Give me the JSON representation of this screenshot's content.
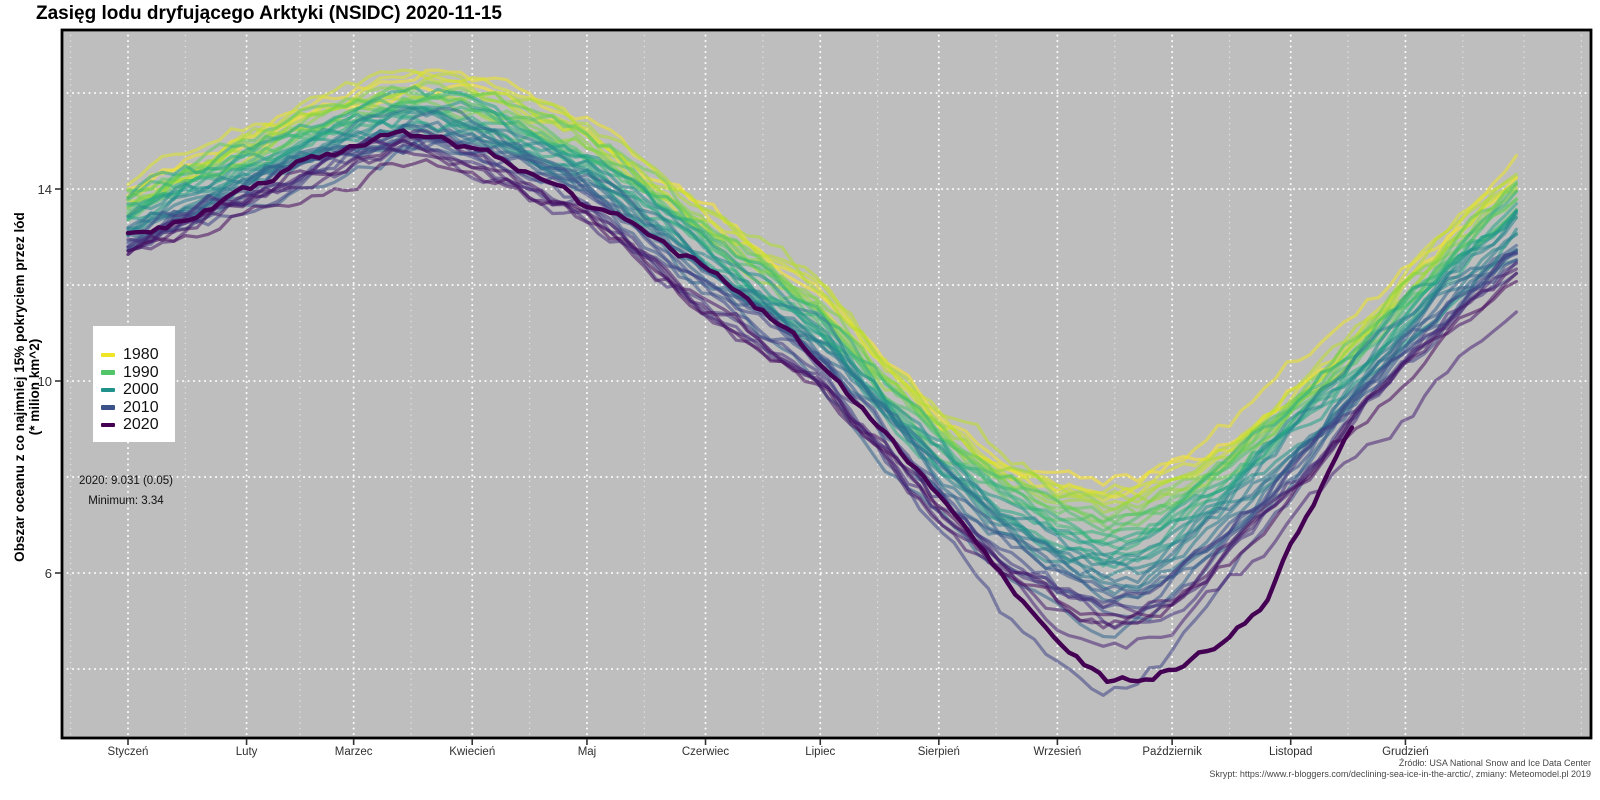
{
  "title": "Zasięg lodu dryfującego Arktyki (NSIDC) 2020-11-15",
  "y_axis": {
    "title_line1": "Obszar oceanu z co najmniej 15% pokryciem przez lód",
    "title_line2": "(* milion km^2)",
    "tick_values": [
      6,
      10,
      14
    ]
  },
  "x_axis": {
    "month_labels": [
      "Styczeń",
      "Luty",
      "Marzec",
      "Kwiecień",
      "Maj",
      "Czerwiec",
      "Lipiec",
      "Sierpień",
      "Wrzesień",
      "Październik",
      "Listopad",
      "Grudzień"
    ]
  },
  "legend": {
    "entries": [
      {
        "label": "1980",
        "color": "#ede526"
      },
      {
        "label": "1990",
        "color": "#52c569"
      },
      {
        "label": "2000",
        "color": "#21918c"
      },
      {
        "label": "2010",
        "color": "#3b528b"
      },
      {
        "label": "2020",
        "color": "#440154"
      }
    ]
  },
  "annotation": {
    "line1": "2020: 9.031 (0.05)",
    "line2": "Minimum: 3.34"
  },
  "footer": {
    "line1": "Źródło: USA National Snow and Ice Data Center",
    "line2": "Skrypt: https://www.r-bloggers.com/declining-sea-ice-in-the-arctic/, zmiany: Meteomodel.pl 2019"
  },
  "colors": {
    "panel_background": "#bebebe",
    "grid_major": "rgba(255,255,255,0.95)",
    "grid_minor": "rgba(255,255,255,0.55)",
    "panel_frame": "#000000",
    "tick_mark": "#333333",
    "highlight_2020": "#440154"
  },
  "chart_data": {
    "type": "line",
    "title": "Zasięg lodu dryfującego Arktyki (NSIDC) 2020-11-15",
    "xlabel": "",
    "ylabel": "Obszar oceanu z co najmniej 15% pokryciem przez lód (* milion km^2)",
    "x_unit": "day_of_year",
    "ylim": [
      2.5,
      17.3
    ],
    "y_gridlines_major": [
      4,
      6,
      8,
      10,
      12,
      14,
      16
    ],
    "y_tick_labels": [
      6,
      10,
      14
    ],
    "month_start_days": [
      0,
      31,
      59,
      90,
      120,
      151,
      181,
      212,
      243,
      273,
      304,
      334
    ],
    "month_mid_days": [
      -15,
      15,
      45,
      74,
      105,
      135,
      166,
      196,
      227,
      258,
      288,
      319,
      349,
      365,
      380
    ],
    "grid": true,
    "legend_position": "inside-left",
    "background_years": {
      "first": 1979,
      "last": 2019,
      "line_alpha": 0.55
    },
    "color_rule": "viridis((2020 - year) / 41), reversed so older years are yellow and recent years purple",
    "viridis_stops": [
      "#440154",
      "#482878",
      "#3e4a89",
      "#31688e",
      "#26828e",
      "#1f9e89",
      "#35b779",
      "#6ece58",
      "#b5de2b",
      "#fde725"
    ],
    "seasonal_base_anchors": [
      [
        0,
        13.3
      ],
      [
        15,
        13.85
      ],
      [
        31,
        14.35
      ],
      [
        45,
        14.8
      ],
      [
        59,
        15.2
      ],
      [
        74,
        15.5
      ],
      [
        82,
        15.45
      ],
      [
        90,
        15.3
      ],
      [
        105,
        14.9
      ],
      [
        120,
        14.4
      ],
      [
        135,
        13.5
      ],
      [
        151,
        12.5
      ],
      [
        166,
        11.7
      ],
      [
        181,
        10.9
      ],
      [
        196,
        9.6
      ],
      [
        212,
        8.3
      ],
      [
        227,
        7.3
      ],
      [
        243,
        6.6
      ],
      [
        255,
        6.3
      ],
      [
        264,
        6.35
      ],
      [
        273,
        6.7
      ],
      [
        288,
        7.6
      ],
      [
        304,
        8.8
      ],
      [
        319,
        10.0
      ],
      [
        334,
        11.2
      ],
      [
        350,
        12.4
      ],
      [
        365,
        13.4
      ]
    ],
    "trend_half_spread_anchors": [
      [
        0,
        0.75
      ],
      [
        31,
        0.8
      ],
      [
        59,
        0.85
      ],
      [
        74,
        0.85
      ],
      [
        90,
        0.9
      ],
      [
        120,
        1.0
      ],
      [
        151,
        1.1
      ],
      [
        181,
        1.0
      ],
      [
        196,
        1.0
      ],
      [
        212,
        1.1
      ],
      [
        227,
        1.25
      ],
      [
        243,
        1.4
      ],
      [
        255,
        1.55
      ],
      [
        273,
        1.5
      ],
      [
        288,
        1.35
      ],
      [
        304,
        1.15
      ],
      [
        319,
        0.95
      ],
      [
        334,
        1.0
      ],
      [
        350,
        1.05
      ],
      [
        365,
        1.1
      ]
    ],
    "year_anomalies": {
      "2012": [
        [
          166,
          0
        ],
        [
          196,
          -0.5
        ],
        [
          227,
          -1.2
        ],
        [
          243,
          -1.6
        ],
        [
          252,
          -1.9
        ],
        [
          262,
          -1.8
        ],
        [
          273,
          -1.5
        ],
        [
          290,
          -0.9
        ],
        [
          304,
          -0.5
        ],
        [
          334,
          -0.2
        ],
        [
          365,
          0
        ]
      ],
      "2016": [
        [
          227,
          0
        ],
        [
          243,
          -0.4
        ],
        [
          273,
          -0.7
        ],
        [
          304,
          -1.0
        ],
        [
          319,
          -1.1
        ],
        [
          334,
          -1.2
        ],
        [
          350,
          -0.9
        ],
        [
          365,
          -0.7
        ]
      ],
      "2007": [
        [
          151,
          0
        ],
        [
          181,
          -0.4
        ],
        [
          212,
          -0.7
        ],
        [
          243,
          -0.85
        ],
        [
          262,
          -0.85
        ],
        [
          290,
          -0.5
        ],
        [
          320,
          -0.25
        ],
        [
          350,
          0
        ]
      ]
    },
    "series_2020": {
      "year": 2020,
      "color": "#440154",
      "last_value": 9.031,
      "last_value_uncertainty": 0.05,
      "end_day": 320,
      "anchors": [
        [
          0,
          13.15
        ],
        [
          10,
          13.3
        ],
        [
          20,
          13.6
        ],
        [
          31,
          13.9
        ],
        [
          45,
          14.5
        ],
        [
          55,
          14.75
        ],
        [
          63,
          15.0
        ],
        [
          70,
          15.2
        ],
        [
          75,
          15.1
        ],
        [
          80,
          15.15
        ],
        [
          85,
          15.0
        ],
        [
          90,
          14.85
        ],
        [
          98,
          14.6
        ],
        [
          105,
          14.3
        ],
        [
          113,
          14.0
        ],
        [
          120,
          13.6
        ],
        [
          128,
          13.3
        ],
        [
          135,
          13.05
        ],
        [
          143,
          12.7
        ],
        [
          151,
          12.4
        ],
        [
          158,
          12.0
        ],
        [
          166,
          11.5
        ],
        [
          174,
          11.0
        ],
        [
          181,
          10.4
        ],
        [
          188,
          9.8
        ],
        [
          196,
          9.1
        ],
        [
          204,
          8.3
        ],
        [
          212,
          7.5
        ],
        [
          220,
          6.7
        ],
        [
          227,
          6.0
        ],
        [
          235,
          5.3
        ],
        [
          243,
          4.6
        ],
        [
          250,
          4.1
        ],
        [
          257,
          3.72
        ],
        [
          264,
          3.78
        ],
        [
          270,
          3.95
        ],
        [
          277,
          4.2
        ],
        [
          284,
          4.5
        ],
        [
          290,
          4.85
        ],
        [
          297,
          5.4
        ],
        [
          304,
          6.7
        ],
        [
          309,
          7.4
        ],
        [
          314,
          8.2
        ],
        [
          318,
          8.8
        ],
        [
          320,
          9.031
        ]
      ]
    },
    "record_minimum": {
      "year": 2012,
      "value": 3.34
    }
  }
}
